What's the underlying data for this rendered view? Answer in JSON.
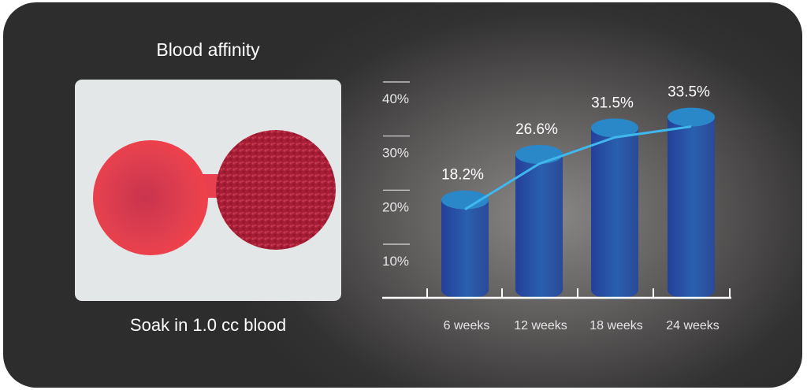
{
  "left_panel": {
    "title": "Blood affinity",
    "caption": "Soak in 1.0 cc blood"
  },
  "chart_data": {
    "type": "bar",
    "style": "3d-cylinder with trend line",
    "categories": [
      "6 weeks",
      "12 weeks",
      "18 weeks",
      "24 weeks"
    ],
    "values": [
      18.2,
      26.6,
      31.5,
      33.5
    ],
    "value_labels": [
      "18.2%",
      "26.6%",
      "31.5%",
      "33.5%"
    ],
    "yticks": [
      10,
      20,
      30,
      40
    ],
    "ytick_labels": [
      "10%",
      "20%",
      "30%",
      "40%"
    ],
    "ylim": [
      0,
      40
    ],
    "title": "",
    "xlabel": "",
    "ylabel": "",
    "grid": false,
    "colors": {
      "bar": "#2a4fa0",
      "bar_top": "#2a88c8",
      "line": "#3fb8ee",
      "axis": "#ffffff"
    }
  }
}
